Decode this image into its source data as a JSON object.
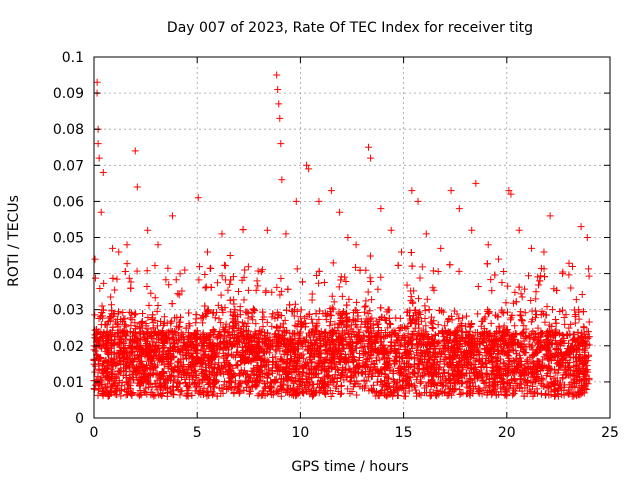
{
  "chart_data": {
    "type": "scatter",
    "title": "Day 007 of 2023, Rate Of TEC Index for receiver titg",
    "xlabel": "GPS time / hours",
    "ylabel": "ROTI / TECUs",
    "xlim": [
      0,
      25
    ],
    "ylim": [
      0,
      0.1
    ],
    "x_ticks": [
      0,
      5,
      10,
      15,
      20,
      25
    ],
    "x_tick_labels": [
      "0",
      "5",
      "10",
      "15",
      "20",
      "25"
    ],
    "y_ticks": [
      0,
      0.01,
      0.02,
      0.03,
      0.04,
      0.05,
      0.06,
      0.07,
      0.08,
      0.09,
      0.1
    ],
    "y_tick_labels": [
      "0",
      "0.01",
      "0.02",
      "0.03",
      "0.04",
      "0.05",
      "0.06",
      "0.07",
      "0.08",
      "0.09",
      "0.1"
    ],
    "grid": true,
    "marker": "+",
    "marker_color": "#ff0000",
    "data_extent_hours": [
      0,
      24
    ],
    "series": [
      {
        "x": [
          0.05,
          0.15,
          0.15,
          0.2,
          0.2,
          0.25,
          0.35,
          0.45,
          0.9,
          1.2,
          1.6,
          2.0,
          2.1,
          2.6,
          3.1,
          3.8,
          4.4,
          5.05,
          5.5,
          6.2,
          6.6,
          7.3,
          7.9,
          8.4,
          8.85,
          8.9,
          8.95,
          9.0,
          9.05,
          9.1,
          9.3,
          9.8,
          10.3,
          10.4,
          10.9,
          11.5,
          11.9,
          12.3,
          12.7,
          13.3,
          13.4,
          13.9,
          14.4,
          14.9,
          15.4,
          15.7,
          16.1,
          16.8,
          17.3,
          17.7,
          18.3,
          18.5,
          19.1,
          19.6,
          20.1,
          20.2,
          20.6,
          21.2,
          21.8,
          22.1,
          22.7,
          23.1,
          23.6,
          23.9
        ],
        "y": [
          0.044,
          0.093,
          0.09,
          0.08,
          0.076,
          0.072,
          0.057,
          0.068,
          0.047,
          0.046,
          0.048,
          0.074,
          0.064,
          0.052,
          0.048,
          0.056,
          0.041,
          0.061,
          0.046,
          0.051,
          0.045,
          0.041,
          0.038,
          0.052,
          0.095,
          0.091,
          0.087,
          0.083,
          0.076,
          0.066,
          0.051,
          0.06,
          0.07,
          0.069,
          0.06,
          0.063,
          0.057,
          0.05,
          0.048,
          0.075,
          0.072,
          0.058,
          0.052,
          0.046,
          0.063,
          0.06,
          0.051,
          0.047,
          0.063,
          0.058,
          0.052,
          0.065,
          0.048,
          0.044,
          0.063,
          0.062,
          0.052,
          0.047,
          0.046,
          0.056,
          0.04,
          0.036,
          0.053,
          0.05
        ]
      }
    ]
  }
}
